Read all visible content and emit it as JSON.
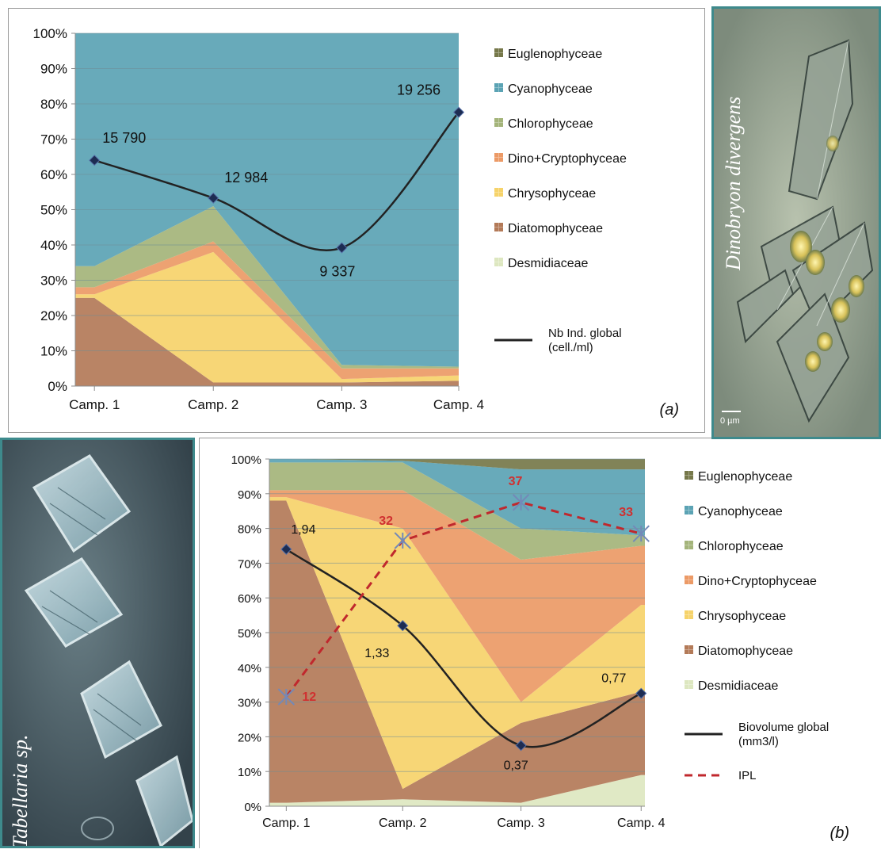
{
  "chart_data": [
    {
      "id": "a",
      "type": "area",
      "stacked_percent": true,
      "panel_label": "(a)",
      "categories": [
        "Camp. 1",
        "Camp. 2",
        "Camp. 3",
        "Camp. 4"
      ],
      "ylim": [
        0,
        100
      ],
      "yticks": [
        "0%",
        "10%",
        "20%",
        "30%",
        "40%",
        "50%",
        "60%",
        "70%",
        "80%",
        "90%",
        "100%"
      ],
      "grid": true,
      "legend_position": "right",
      "series": [
        {
          "name": "Desmidiaceae",
          "color": "#dde7c0",
          "values": [
            0,
            0,
            0,
            0
          ]
        },
        {
          "name": "Diatomophyceae",
          "color": "#b37a58",
          "values": [
            25,
            1,
            1,
            1.5
          ]
        },
        {
          "name": "Chrysophyceae",
          "color": "#f6d36a",
          "values": [
            1,
            37,
            1,
            1.5
          ]
        },
        {
          "name": "Dino+Cryptophyceae",
          "color": "#ec9a66",
          "values": [
            2,
            3,
            3,
            2
          ]
        },
        {
          "name": "Chlorophyceae",
          "color": "#a4b47a",
          "values": [
            6,
            10,
            1,
            0.5
          ]
        },
        {
          "name": "Cyanophyceae",
          "color": "#5ba3b4",
          "values": [
            66,
            49,
            94,
            94.5
          ]
        },
        {
          "name": "Euglenophyceae",
          "color": "#76784a",
          "values": [
            0,
            0,
            0,
            0
          ]
        }
      ],
      "line_series": [
        {
          "name": "Nb Ind. global (cell./ml)",
          "legend_lines": [
            "Nb Ind. global",
            "(cell./ml)"
          ],
          "color": "#222222",
          "style": "solid",
          "y_percent": [
            64,
            53.3,
            39.2,
            77.6
          ],
          "labels": [
            "15 790",
            "12 984",
            "9 337",
            "19 256"
          ]
        }
      ]
    },
    {
      "id": "b",
      "type": "area",
      "stacked_percent": true,
      "panel_label": "(b)",
      "categories": [
        "Camp. 1",
        "Camp. 2",
        "Camp. 3",
        "Camp. 4"
      ],
      "ylim": [
        0,
        100
      ],
      "yticks": [
        "0%",
        "10%",
        "20%",
        "30%",
        "40%",
        "50%",
        "60%",
        "70%",
        "80%",
        "90%",
        "100%"
      ],
      "grid": true,
      "legend_position": "right",
      "series": [
        {
          "name": "Desmidiaceae",
          "color": "#dde7c0",
          "values": [
            1,
            2,
            1,
            9
          ]
        },
        {
          "name": "Diatomophyceae",
          "color": "#b37a58",
          "values": [
            87,
            3,
            23,
            24
          ]
        },
        {
          "name": "Chrysophyceae",
          "color": "#f6d36a",
          "values": [
            1,
            75,
            6,
            25
          ]
        },
        {
          "name": "Dino+Cryptophyceae",
          "color": "#ec9a66",
          "values": [
            2,
            11,
            41,
            17
          ]
        },
        {
          "name": "Chlorophyceae",
          "color": "#a4b47a",
          "values": [
            8,
            8,
            9,
            3
          ]
        },
        {
          "name": "Cyanophyceae",
          "color": "#5ba3b4",
          "values": [
            1,
            0.5,
            17,
            19
          ]
        },
        {
          "name": "Euglenophyceae",
          "color": "#76784a",
          "values": [
            0,
            0.5,
            3,
            3
          ]
        }
      ],
      "line_series": [
        {
          "name": "Biovolume global (mm3/l)",
          "legend_lines": [
            "Biovolume global",
            "(mm3/l)"
          ],
          "color": "#222222",
          "style": "solid",
          "y_percent": [
            74,
            52,
            17.5,
            32.5
          ],
          "labels": [
            "1,94",
            "1,33",
            "0,37",
            "0,77"
          ]
        },
        {
          "name": "IPL",
          "legend_lines": [
            "IPL"
          ],
          "color": "#c0282d",
          "style": "dashed",
          "y_percent": [
            31.5,
            76.5,
            87.5,
            78.5
          ],
          "labels": [
            "12",
            "32",
            "37",
            "33"
          ]
        }
      ]
    }
  ],
  "photos": {
    "dino": {
      "caption": "Dinobryon divergens",
      "scale_label": "0 µm"
    },
    "tab": {
      "caption": "Tabellaria sp."
    }
  }
}
